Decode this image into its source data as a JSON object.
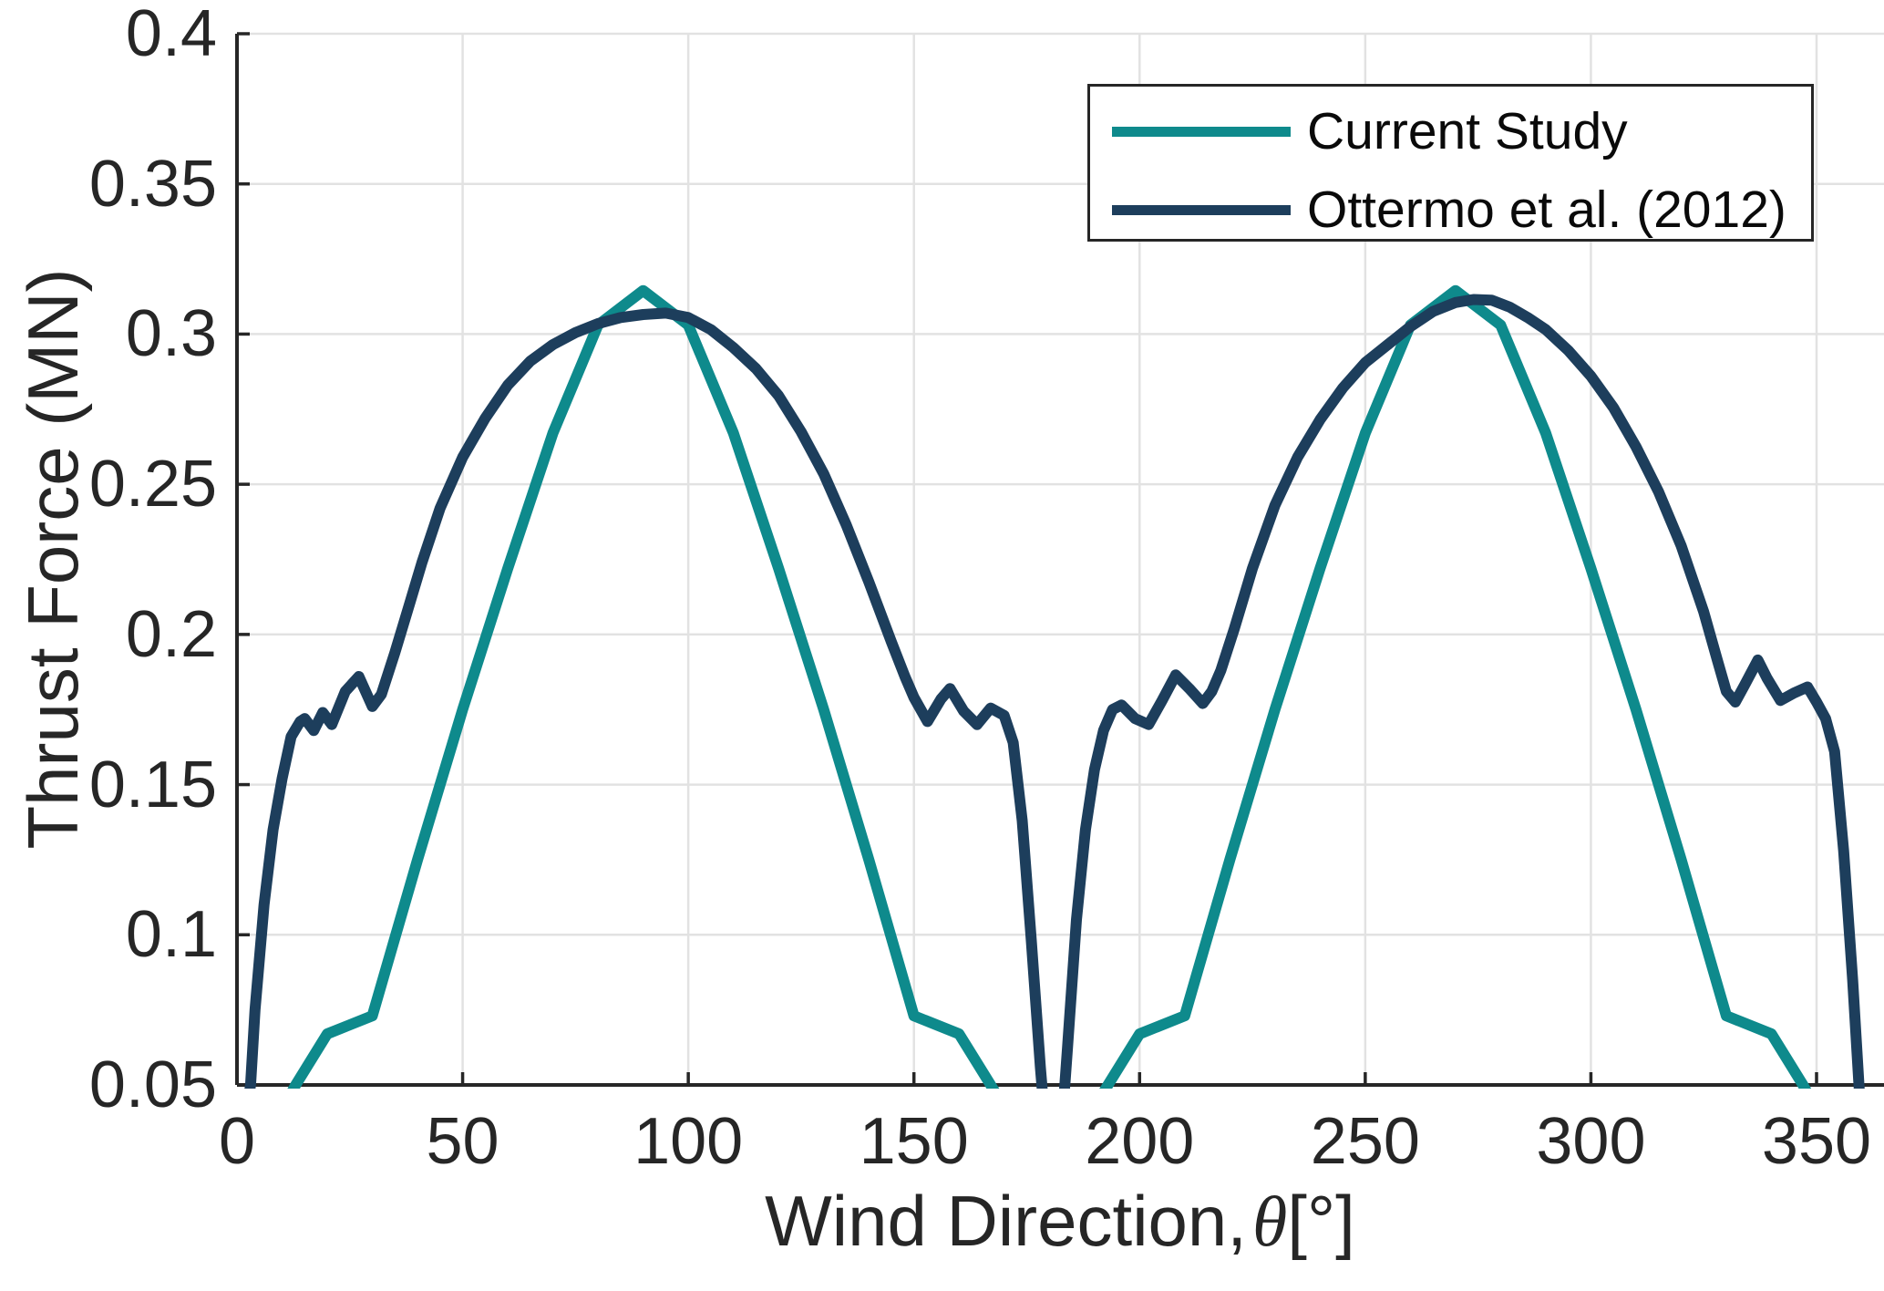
{
  "chart_data": {
    "type": "line",
    "title": "",
    "xlabel": "Wind Direction, θ[°]",
    "xlabel_parts": {
      "prefix": "Wind Direction,",
      "symbol": "θ",
      "suffix": "[°]"
    },
    "ylabel": "Thrust Force (MN)",
    "xlim": [
      0,
      365
    ],
    "ylim": [
      0.05,
      0.4
    ],
    "xticks": [
      0,
      50,
      100,
      150,
      200,
      250,
      300,
      350
    ],
    "yticks": [
      0.05,
      0.1,
      0.15,
      0.2,
      0.25,
      0.3,
      0.35,
      0.4
    ],
    "ytick_labels": [
      "0.05",
      "0.1",
      "0.15",
      "0.2",
      "0.25",
      "0.3",
      "0.35",
      "0.4"
    ],
    "grid": true,
    "legend_position": "top-right",
    "series": [
      {
        "name": "Current Study",
        "color": "#0e8a8c",
        "points": [
          [
            2,
            0.02
          ],
          [
            13,
            0.05
          ],
          [
            20,
            0.067
          ],
          [
            30,
            0.073
          ],
          [
            40,
            0.125
          ],
          [
            50,
            0.175
          ],
          [
            60,
            0.222
          ],
          [
            70,
            0.267
          ],
          [
            80,
            0.303
          ],
          [
            90,
            0.3145
          ],
          [
            100,
            0.303
          ],
          [
            110,
            0.267
          ],
          [
            120,
            0.222
          ],
          [
            130,
            0.175
          ],
          [
            140,
            0.125
          ],
          [
            150,
            0.073
          ],
          [
            160,
            0.067
          ],
          [
            167,
            0.05
          ],
          [
            180,
            0.018
          ],
          [
            193,
            0.05
          ],
          [
            200,
            0.067
          ],
          [
            210,
            0.073
          ],
          [
            220,
            0.125
          ],
          [
            230,
            0.175
          ],
          [
            240,
            0.222
          ],
          [
            250,
            0.267
          ],
          [
            260,
            0.303
          ],
          [
            270,
            0.3145
          ],
          [
            280,
            0.303
          ],
          [
            290,
            0.267
          ],
          [
            300,
            0.222
          ],
          [
            310,
            0.175
          ],
          [
            320,
            0.125
          ],
          [
            330,
            0.073
          ],
          [
            340,
            0.067
          ],
          [
            347,
            0.05
          ],
          [
            358,
            0.02
          ]
        ]
      },
      {
        "name": "Ottermo et al. (2012)",
        "color": "#1d3e5c",
        "points": [
          [
            0,
            0.02
          ],
          [
            3,
            0.05
          ],
          [
            4,
            0.075
          ],
          [
            6,
            0.11
          ],
          [
            8,
            0.135
          ],
          [
            10,
            0.152
          ],
          [
            12,
            0.166
          ],
          [
            14,
            0.171
          ],
          [
            15,
            0.172
          ],
          [
            17,
            0.168
          ],
          [
            19,
            0.174
          ],
          [
            21,
            0.17
          ],
          [
            24,
            0.181
          ],
          [
            27,
            0.186
          ],
          [
            30,
            0.176
          ],
          [
            32,
            0.18
          ],
          [
            35,
            0.194
          ],
          [
            38,
            0.209
          ],
          [
            41,
            0.224
          ],
          [
            45,
            0.242
          ],
          [
            50,
            0.259
          ],
          [
            55,
            0.272
          ],
          [
            60,
            0.283
          ],
          [
            65,
            0.291
          ],
          [
            70,
            0.2965
          ],
          [
            75,
            0.3005
          ],
          [
            80,
            0.3035
          ],
          [
            85,
            0.3055
          ],
          [
            90,
            0.3065
          ],
          [
            95,
            0.307
          ],
          [
            100,
            0.3055
          ],
          [
            105,
            0.3015
          ],
          [
            110,
            0.2955
          ],
          [
            115,
            0.2885
          ],
          [
            120,
            0.2795
          ],
          [
            125,
            0.2675
          ],
          [
            130,
            0.2535
          ],
          [
            135,
            0.2365
          ],
          [
            140,
            0.2175
          ],
          [
            145,
            0.1975
          ],
          [
            148,
            0.186
          ],
          [
            150,
            0.179
          ],
          [
            153,
            0.171
          ],
          [
            156,
            0.1785
          ],
          [
            158,
            0.182
          ],
          [
            161,
            0.1745
          ],
          [
            164,
            0.17
          ],
          [
            167,
            0.1755
          ],
          [
            170,
            0.173
          ],
          [
            172,
            0.164
          ],
          [
            174,
            0.138
          ],
          [
            176,
            0.098
          ],
          [
            178,
            0.056
          ],
          [
            180,
            0.02
          ],
          [
            182,
            0.02
          ],
          [
            184,
            0.062
          ],
          [
            186,
            0.105
          ],
          [
            188,
            0.135
          ],
          [
            190,
            0.155
          ],
          [
            192,
            0.168
          ],
          [
            194,
            0.175
          ],
          [
            196,
            0.1765
          ],
          [
            199,
            0.172
          ],
          [
            202,
            0.17
          ],
          [
            205,
            0.178
          ],
          [
            208,
            0.1865
          ],
          [
            211,
            0.182
          ],
          [
            214,
            0.177
          ],
          [
            216,
            0.181
          ],
          [
            218,
            0.188
          ],
          [
            221,
            0.202
          ],
          [
            225,
            0.222
          ],
          [
            230,
            0.243
          ],
          [
            235,
            0.259
          ],
          [
            240,
            0.2715
          ],
          [
            245,
            0.282
          ],
          [
            250,
            0.2905
          ],
          [
            255,
            0.2965
          ],
          [
            260,
            0.3025
          ],
          [
            265,
            0.3075
          ],
          [
            270,
            0.3105
          ],
          [
            274,
            0.3115
          ],
          [
            278,
            0.3113
          ],
          [
            282,
            0.309
          ],
          [
            286,
            0.3055
          ],
          [
            290,
            0.3015
          ],
          [
            295,
            0.2945
          ],
          [
            300,
            0.286
          ],
          [
            305,
            0.2755
          ],
          [
            310,
            0.2625
          ],
          [
            315,
            0.2475
          ],
          [
            320,
            0.2295
          ],
          [
            325,
            0.2075
          ],
          [
            328,
            0.1915
          ],
          [
            330,
            0.181
          ],
          [
            332,
            0.1775
          ],
          [
            334,
            0.183
          ],
          [
            337,
            0.1915
          ],
          [
            339,
            0.1855
          ],
          [
            342,
            0.178
          ],
          [
            345,
            0.1805
          ],
          [
            348,
            0.1825
          ],
          [
            350,
            0.1775
          ],
          [
            352,
            0.172
          ],
          [
            354,
            0.161
          ],
          [
            356,
            0.128
          ],
          [
            358,
            0.085
          ],
          [
            360,
            0.035
          ]
        ]
      }
    ]
  },
  "styles": {
    "background": "#ffffff",
    "axis_color": "#262626",
    "grid_color": "#e2e2e2",
    "tick_label_color": "#262626",
    "legend_border_color": "#262626",
    "legend_text_color": "#0a0a0a",
    "series_teal": "#0e8a8c",
    "series_navy": "#1d3e5c"
  }
}
